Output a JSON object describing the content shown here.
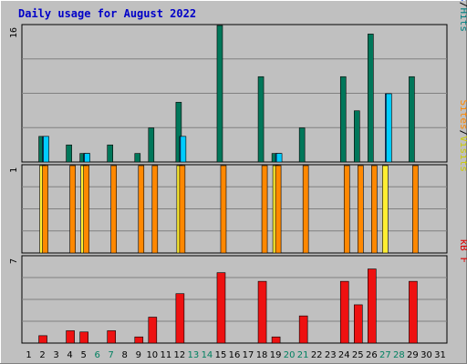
{
  "chart_data": {
    "type": "bar",
    "title": "Daily usage for August 2022",
    "x": [
      1,
      2,
      3,
      4,
      5,
      6,
      7,
      8,
      9,
      10,
      11,
      12,
      13,
      14,
      15,
      16,
      17,
      18,
      19,
      20,
      21,
      22,
      23,
      24,
      25,
      26,
      27,
      28,
      29,
      30,
      31
    ],
    "weekend_days": [
      6,
      7,
      13,
      14,
      20,
      21,
      27,
      28
    ],
    "panels": [
      {
        "name": "top",
        "ymax": 16,
        "ymax_label": "16",
        "legend": [
          {
            "text": "Pages",
            "color": "#00c8e8"
          },
          {
            "text": "/",
            "color": "#000000"
          },
          {
            "text": "Files",
            "color": "#1050e0"
          },
          {
            "text": "/",
            "color": "#000000"
          },
          {
            "text": "Hits",
            "color": "#008080"
          }
        ],
        "series": [
          {
            "name": "Hits",
            "color": "#00775a",
            "values": [
              0,
              3,
              0,
              2,
              1,
              0,
              2,
              0,
              1,
              4,
              0,
              7,
              0,
              0,
              16,
              0,
              0,
              10,
              1,
              0,
              4,
              0,
              0,
              10,
              6,
              15,
              0,
              0,
              10,
              0,
              0
            ]
          },
          {
            "name": "Files",
            "color": "#2255cc",
            "values": [
              0,
              3,
              0,
              0,
              1,
              0,
              0,
              0,
              0,
              0,
              0,
              3,
              0,
              0,
              0,
              0,
              0,
              0,
              1,
              0,
              0,
              0,
              0,
              0,
              0,
              0,
              8,
              0,
              0,
              0,
              0
            ]
          },
          {
            "name": "Pages",
            "color": "#00ccff",
            "values": [
              0,
              3,
              0,
              0,
              1,
              0,
              0,
              0,
              0,
              0,
              0,
              3,
              0,
              0,
              0,
              0,
              0,
              0,
              1,
              0,
              0,
              0,
              0,
              0,
              0,
              0,
              8,
              0,
              0,
              0,
              0
            ]
          }
        ]
      },
      {
        "name": "middle",
        "ymax": 1,
        "ymax_label": "1",
        "legend": [
          {
            "text": "Sites",
            "color": "#ff8800"
          },
          {
            "text": "/",
            "color": "#000000"
          },
          {
            "text": "Visits",
            "color": "#cccc00"
          }
        ],
        "series": [
          {
            "name": "Visits",
            "color": "#ffee33",
            "values": [
              0,
              1,
              0,
              0,
              1,
              0,
              0,
              0,
              0,
              0,
              0,
              1,
              0,
              0,
              0,
              0,
              0,
              0,
              1,
              0,
              0,
              0,
              0,
              0,
              0,
              0,
              1,
              0,
              0,
              0,
              0
            ]
          },
          {
            "name": "Sites",
            "color": "#ff8800",
            "values": [
              0,
              1,
              0,
              1,
              1,
              0,
              1,
              0,
              1,
              1,
              0,
              1,
              0,
              0,
              1,
              0,
              0,
              1,
              1,
              0,
              1,
              0,
              0,
              1,
              1,
              1,
              0,
              0,
              1,
              0,
              0
            ]
          }
        ]
      },
      {
        "name": "bottom",
        "ymax": 7,
        "ymax_label": "7",
        "legend": [
          {
            "text": "kB F",
            "color": "#dd0000"
          }
        ],
        "series": [
          {
            "name": "kB F",
            "color": "#ee1111",
            "values": [
              0,
              0.6,
              0,
              1,
              0.9,
              0,
              1,
              0,
              0.5,
              2.1,
              0,
              4,
              0,
              0,
              5.7,
              0,
              0,
              5,
              0.5,
              0,
              2.2,
              0,
              0,
              5,
              3.1,
              6,
              0,
              0,
              5,
              0,
              0
            ]
          }
        ]
      }
    ]
  }
}
